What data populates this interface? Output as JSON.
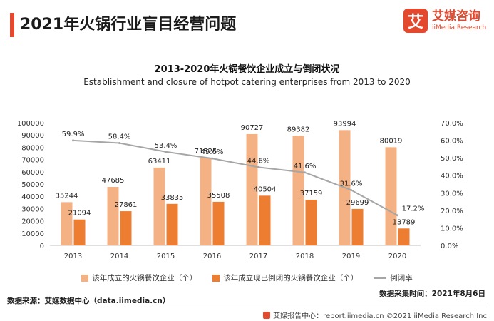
{
  "header": {
    "title": "2021年火锅行业盲目经营问题",
    "logo_mark": "艾",
    "logo_cn": "艾媒咨询",
    "logo_en": "iiMedia Research"
  },
  "chart_data": {
    "type": "bar",
    "title": "2013-2020年火锅餐饮企业成立与倒闭状况",
    "subtitle": "Establishment and closure of hotpot catering enterprises from 2013 to 2020",
    "categories": [
      "2013",
      "2014",
      "2015",
      "2016",
      "2017",
      "2018",
      "2019",
      "2020"
    ],
    "series": [
      {
        "name": "该年成立的火锅餐饮企业（个）",
        "kind": "bar",
        "color": "#f4b183",
        "values": [
          35244,
          47685,
          63411,
          71525,
          90727,
          89382,
          93994,
          80019
        ]
      },
      {
        "name": "该年成立现已倒闭的火锅餐饮企业（个）",
        "kind": "bar",
        "color": "#ed7d31",
        "values": [
          21094,
          27861,
          33835,
          35508,
          40504,
          37159,
          29699,
          13789
        ]
      },
      {
        "name": "倒闭率",
        "kind": "line",
        "axis": "right",
        "color": "#a6a6a6",
        "values": [
          59.9,
          58.4,
          53.4,
          49.6,
          44.6,
          41.6,
          31.6,
          17.2
        ]
      }
    ],
    "left_axis": {
      "min": 0,
      "max": 100000,
      "step": 10000,
      "ticks": [
        "0",
        "10000",
        "20000",
        "30000",
        "40000",
        "50000",
        "60000",
        "70000",
        "80000",
        "90000",
        "100000"
      ]
    },
    "right_axis": {
      "min": 0,
      "max": 70,
      "step": 10,
      "ticks": [
        "0.0%",
        "10.0%",
        "20.0%",
        "30.0%",
        "40.0%",
        "50.0%",
        "60.0%",
        "70.0%"
      ]
    },
    "rate_labels": [
      "59.9%",
      "58.4%",
      "53.4%",
      "49.6%",
      "44.6%",
      "41.6%",
      "31.6%",
      "17.2%"
    ],
    "grid": false,
    "legend": "bottom"
  },
  "legend": {
    "bar1": "该年成立的火锅餐饮企业（个）",
    "bar2": "该年成立现已倒闭的火锅餐饮企业（个）",
    "line": "倒闭率"
  },
  "notes": {
    "collect_date": "数据采集时间：2021年8月6日",
    "source": "数据来源：艾媒数据中心（data.iimedia.cn）"
  },
  "footer": {
    "text": "艾媒报告中心：report.iimedia.cn   ©2021  iiMedia Research  Inc"
  }
}
